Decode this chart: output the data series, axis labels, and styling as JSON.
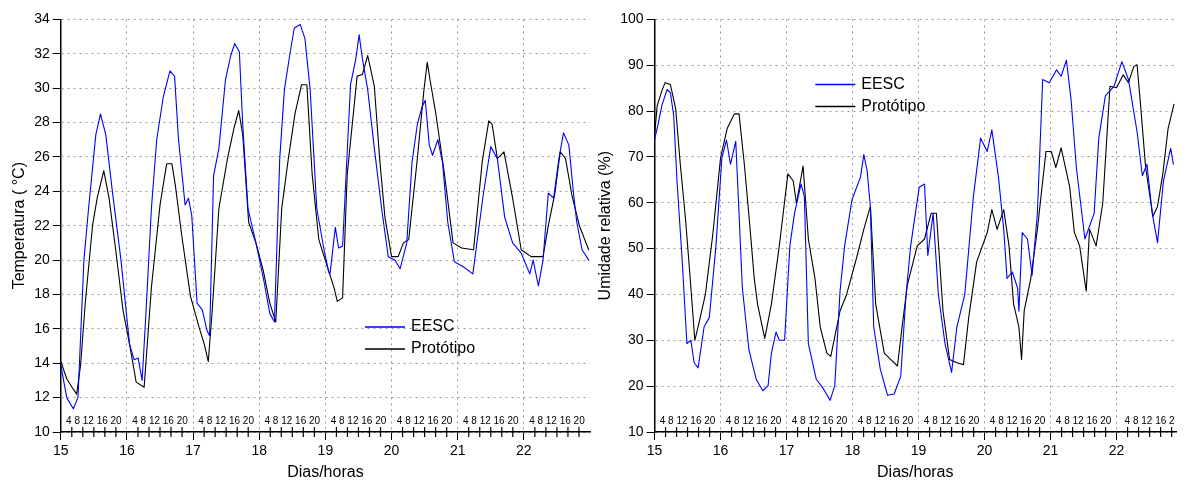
{
  "chart_data": [
    {
      "type": "line",
      "xlabel": "Dias/horas",
      "ylabel": "Temperatura ( °C)",
      "xlim": [
        15,
        23
      ],
      "xticks": [
        15,
        16,
        17,
        18,
        19,
        20,
        21,
        22
      ],
      "ylim": [
        10,
        34
      ],
      "yticks": [
        10,
        12,
        14,
        16,
        18,
        20,
        22,
        24,
        26,
        28,
        30,
        32,
        34
      ],
      "grid": true,
      "legend": "bottom right",
      "marker": "none",
      "line_style": "solid",
      "series": [
        {
          "name": "EESC",
          "color": "#0000ff",
          "x": [
            15.0,
            15.09,
            15.19,
            15.26,
            15.35,
            15.42,
            15.53,
            15.6,
            15.68,
            15.78,
            15.91,
            16.04,
            16.11,
            16.17,
            16.23,
            16.29,
            16.37,
            16.45,
            16.55,
            16.65,
            16.72,
            16.78,
            16.88,
            16.93,
            16.98,
            17.06,
            17.14,
            17.21,
            17.25,
            17.31,
            17.39,
            17.49,
            17.57,
            17.63,
            17.7,
            17.75,
            17.83,
            17.95,
            18.06,
            18.16,
            18.23,
            18.31,
            18.38,
            18.46,
            18.53,
            18.62,
            18.69,
            18.77,
            18.87,
            18.98,
            19.05,
            19.07,
            19.15,
            19.2,
            19.26,
            19.38,
            19.46,
            19.51,
            19.56,
            19.64,
            19.74,
            19.85,
            19.95,
            20.05,
            20.13,
            20.23,
            20.31,
            20.39,
            20.46,
            20.51,
            20.57,
            20.62,
            20.7,
            20.77,
            20.85,
            20.95,
            21.09,
            21.23,
            21.29,
            21.39,
            21.5,
            21.6,
            21.71,
            21.83,
            21.96,
            22.09,
            22.14,
            22.22,
            22.29,
            22.37,
            22.45,
            22.53,
            22.6,
            22.68,
            22.75,
            22.8,
            22.88,
            22.98
          ],
          "values": [
            13.9,
            12.0,
            11.35,
            12.0,
            20.0,
            23.0,
            27.3,
            28.5,
            27.3,
            24.0,
            20.0,
            15.1,
            14.2,
            14.3,
            13.0,
            17.1,
            23.0,
            27.0,
            29.5,
            31.0,
            30.7,
            27.0,
            23.2,
            23.6,
            22.6,
            17.5,
            17.1,
            15.9,
            15.6,
            24.9,
            26.5,
            30.5,
            31.9,
            32.6,
            32.1,
            27.9,
            23.0,
            21.0,
            19.0,
            16.9,
            16.4,
            25.9,
            29.9,
            31.9,
            33.5,
            33.7,
            32.9,
            29.9,
            23.0,
            20.6,
            19.3,
            19.2,
            21.9,
            20.7,
            20.8,
            30.2,
            31.7,
            33.1,
            31.7,
            29.9,
            26.5,
            23.0,
            20.2,
            20.0,
            19.5,
            21.0,
            25.7,
            27.9,
            28.9,
            29.3,
            26.7,
            26.1,
            27.0,
            25.7,
            22.2,
            19.9,
            19.6,
            19.2,
            21.0,
            23.9,
            26.6,
            25.9,
            22.5,
            21.0,
            20.4,
            19.2,
            20.0,
            18.5,
            20.0,
            23.9,
            23.6,
            25.9,
            27.4,
            26.7,
            23.9,
            22.2,
            20.6,
            20.0
          ]
        },
        {
          "name": "Protótipo",
          "color": "#000000",
          "x": [
            15.0,
            15.09,
            15.17,
            15.24,
            15.3,
            15.37,
            15.48,
            15.55,
            15.65,
            15.73,
            15.83,
            15.94,
            16.04,
            16.14,
            16.26,
            16.37,
            16.5,
            16.6,
            16.68,
            16.73,
            16.83,
            16.96,
            17.09,
            17.17,
            17.23,
            17.29,
            17.39,
            17.52,
            17.62,
            17.69,
            17.75,
            17.84,
            17.95,
            18.06,
            18.16,
            18.25,
            18.34,
            18.44,
            18.54,
            18.64,
            18.72,
            18.8,
            18.9,
            19.03,
            19.13,
            19.18,
            19.26,
            19.33,
            19.48,
            19.56,
            19.64,
            19.74,
            19.82,
            19.9,
            20.0,
            20.1,
            20.18,
            20.26,
            20.39,
            20.49,
            20.54,
            20.59,
            20.67,
            20.8,
            20.93,
            21.06,
            21.24,
            21.37,
            21.47,
            21.52,
            21.6,
            21.7,
            21.83,
            21.96,
            22.11,
            22.29,
            22.37,
            22.47,
            22.55,
            22.63,
            22.73,
            22.84,
            22.94,
            22.98
          ],
          "values": [
            14.1,
            13.1,
            12.6,
            12.2,
            13.9,
            17.5,
            22.0,
            23.6,
            25.2,
            23.6,
            20.6,
            17.1,
            15.1,
            12.9,
            12.6,
            18.4,
            23.2,
            25.6,
            25.6,
            24.4,
            21.4,
            17.9,
            16.1,
            15.1,
            14.1,
            17.1,
            23.0,
            25.9,
            27.7,
            28.7,
            27.3,
            22.2,
            21.0,
            19.4,
            17.5,
            16.4,
            23.0,
            25.9,
            28.5,
            30.2,
            30.2,
            25.0,
            21.2,
            19.6,
            18.4,
            17.6,
            17.8,
            25.0,
            30.7,
            30.8,
            31.9,
            30.1,
            25.9,
            22.5,
            20.2,
            20.2,
            21.0,
            21.2,
            25.9,
            29.9,
            31.5,
            30.3,
            28.5,
            25.0,
            21.0,
            20.7,
            20.6,
            25.7,
            28.1,
            27.9,
            25.9,
            26.3,
            23.6,
            20.6,
            20.2,
            20.2,
            22.0,
            23.9,
            26.3,
            25.9,
            23.7,
            22.0,
            21.0,
            20.6
          ]
        }
      ],
      "annotations": [
        "4 8 12 16 20",
        "4 8 12 16 20",
        "4 8 12 16 20",
        "4 8 12 16 20",
        "4 8 12 16 20",
        "4 8 12 16 20",
        "4 8 12 16 20",
        "4 8 12 16 20"
      ]
    },
    {
      "type": "line",
      "xlabel": "Dias/horas",
      "ylabel": "Umidade relativa (%)",
      "xlim": [
        15,
        22.9
      ],
      "xticks": [
        15,
        16,
        17,
        18,
        19,
        20,
        21,
        22
      ],
      "ylim": [
        10,
        100
      ],
      "yticks": [
        10,
        20,
        30,
        40,
        50,
        60,
        70,
        80,
        90,
        100
      ],
      "grid": true,
      "legend": "top",
      "marker": "none",
      "line_style": "solid",
      "series": [
        {
          "name": "EESC",
          "color": "#0000ff",
          "x": [
            15.0,
            15.06,
            15.11,
            15.19,
            15.24,
            15.29,
            15.34,
            15.42,
            15.49,
            15.55,
            15.6,
            15.66,
            15.75,
            15.83,
            15.93,
            16.02,
            16.09,
            16.15,
            16.23,
            16.28,
            16.33,
            16.43,
            16.54,
            16.64,
            16.72,
            16.77,
            16.84,
            16.89,
            16.97,
            17.05,
            17.12,
            17.22,
            17.27,
            17.33,
            17.45,
            17.56,
            17.66,
            17.73,
            17.81,
            17.88,
            17.99,
            18.12,
            18.17,
            18.22,
            18.27,
            18.32,
            18.42,
            18.53,
            18.63,
            18.73,
            18.81,
            18.88,
            19.01,
            19.09,
            19.14,
            19.22,
            19.3,
            19.4,
            19.5,
            19.58,
            19.7,
            19.83,
            19.94,
            20.04,
            20.11,
            20.21,
            20.29,
            20.34,
            20.42,
            20.5,
            20.52,
            20.57,
            20.65,
            20.72,
            20.8,
            20.88,
            20.98,
            21.09,
            21.16,
            21.24,
            21.31,
            21.39,
            21.52,
            21.66,
            21.73,
            21.83,
            21.96,
            22.08,
            22.18,
            22.31,
            22.39,
            22.46,
            22.54,
            22.62,
            22.71,
            22.82,
            22.86
          ],
          "values": [
            73.7,
            77.6,
            81.2,
            84.7,
            84.0,
            79.0,
            64.8,
            47.1,
            29.3,
            30.0,
            25.1,
            24.0,
            32.9,
            35.0,
            50.6,
            69.8,
            73.7,
            68.4,
            73.4,
            57.7,
            41.4,
            27.9,
            21.5,
            19.0,
            20.1,
            27.2,
            31.8,
            30.0,
            30.0,
            50.6,
            57.7,
            64.1,
            61.3,
            29.3,
            21.5,
            19.4,
            16.9,
            20.1,
            40.7,
            50.6,
            60.6,
            65.6,
            70.5,
            67.0,
            59.2,
            32.9,
            23.7,
            18.0,
            18.3,
            22.2,
            40.0,
            50.6,
            63.4,
            64.1,
            48.5,
            57.7,
            40.0,
            29.3,
            23.0,
            32.9,
            40.0,
            61.3,
            74.1,
            71.2,
            75.9,
            65.6,
            54.2,
            43.5,
            44.9,
            41.4,
            36.4,
            53.5,
            52.1,
            44.2,
            57.7,
            86.9,
            86.2,
            89.0,
            87.6,
            91.1,
            82.6,
            67.7,
            52.1,
            57.7,
            74.1,
            83.3,
            85.4,
            90.8,
            86.9,
            75.5,
            65.9,
            68.4,
            57.7,
            51.3,
            64.8,
            71.9,
            68.4
          ]
        },
        {
          "name": "Protótipo",
          "color": "#000000",
          "x": [
            15.0,
            15.04,
            15.11,
            15.16,
            15.24,
            15.32,
            15.39,
            15.47,
            15.54,
            15.61,
            15.67,
            15.77,
            15.88,
            16.0,
            16.1,
            16.21,
            16.28,
            16.36,
            16.44,
            16.51,
            16.56,
            16.67,
            16.77,
            16.89,
            17.02,
            17.1,
            17.15,
            17.25,
            17.33,
            17.43,
            17.51,
            17.61,
            17.67,
            17.81,
            17.91,
            18.07,
            18.17,
            18.27,
            18.35,
            18.48,
            18.58,
            18.68,
            18.75,
            18.83,
            18.98,
            19.09,
            19.19,
            19.27,
            19.32,
            19.37,
            19.47,
            19.58,
            19.68,
            19.76,
            19.88,
            20.04,
            20.11,
            20.19,
            20.29,
            20.37,
            20.44,
            20.52,
            20.56,
            20.6,
            20.7,
            20.8,
            20.93,
            21.01,
            21.08,
            21.16,
            21.29,
            21.36,
            21.44,
            21.54,
            21.59,
            21.69,
            21.79,
            21.9,
            22.0,
            22.1,
            22.18,
            22.26,
            22.31,
            22.36,
            22.44,
            22.55,
            22.62,
            22.7,
            22.78,
            22.87
          ],
          "values": [
            74.8,
            81.2,
            84.4,
            86.2,
            85.8,
            80.5,
            68.4,
            56.3,
            43.5,
            30.0,
            33.6,
            40.0,
            52.8,
            69.8,
            76.2,
            79.4,
            79.4,
            68.4,
            55.6,
            43.5,
            37.9,
            30.4,
            37.9,
            50.6,
            66.3,
            64.8,
            59.9,
            68.0,
            52.1,
            43.5,
            32.9,
            27.2,
            26.5,
            36.4,
            40.0,
            48.5,
            54.2,
            59.2,
            37.9,
            27.2,
            25.8,
            24.4,
            32.9,
            42.1,
            50.6,
            52.1,
            57.7,
            57.7,
            47.1,
            36.4,
            25.8,
            25.1,
            24.7,
            35.0,
            47.1,
            53.5,
            58.5,
            54.2,
            58.5,
            50.6,
            37.9,
            32.9,
            25.8,
            36.4,
            43.5,
            54.2,
            71.2,
            71.2,
            67.7,
            72.0,
            63.4,
            53.5,
            50.6,
            40.7,
            54.2,
            50.6,
            59.9,
            85.4,
            85.1,
            87.9,
            86.2,
            89.7,
            90.1,
            81.9,
            67.7,
            57.0,
            59.2,
            66.3,
            76.2,
            81.5
          ]
        }
      ],
      "annotations": [
        "4 8 12 16 20",
        "4 8 12 16 20",
        "4 8 12 16 20",
        "4 8 12 16 20",
        "4 8 12 16 20",
        "4 8 12 16 20",
        "4 8 12 16 20",
        "4 8 12 16 2"
      ]
    }
  ]
}
